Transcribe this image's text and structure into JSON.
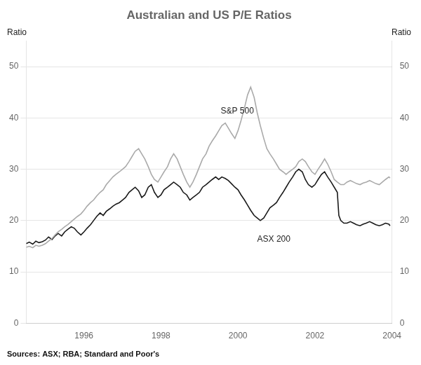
{
  "chart_data": {
    "type": "line",
    "title": "Australian and US P/E Ratios",
    "ylabel": "Ratio",
    "y2label": "Ratio",
    "source": "Sources: ASX; RBA; Standard and Poor's",
    "xlim": [
      1994.5,
      2004.0
    ],
    "xticks": [
      1996,
      1998,
      2000,
      2002,
      2004
    ],
    "ylim": [
      0,
      55
    ],
    "yticks": [
      0,
      10,
      20,
      30,
      40,
      50
    ],
    "y2lim": [
      0,
      55
    ],
    "y2ticks": [
      0,
      10,
      20,
      30,
      40,
      50
    ],
    "grid": true,
    "series": [
      {
        "name": "S&P 500",
        "color": "#aaaaaa",
        "x": [
          1994.5,
          1994.58,
          1994.67,
          1994.75,
          1994.83,
          1994.92,
          1995.0,
          1995.08,
          1995.17,
          1995.25,
          1995.33,
          1995.42,
          1995.5,
          1995.58,
          1995.67,
          1995.75,
          1995.83,
          1995.92,
          1996.0,
          1996.08,
          1996.17,
          1996.25,
          1996.33,
          1996.42,
          1996.5,
          1996.58,
          1996.67,
          1996.75,
          1996.83,
          1996.92,
          1997.0,
          1997.08,
          1997.17,
          1997.25,
          1997.33,
          1997.42,
          1997.5,
          1997.58,
          1997.67,
          1997.75,
          1997.83,
          1997.92,
          1998.0,
          1998.08,
          1998.17,
          1998.25,
          1998.33,
          1998.42,
          1998.5,
          1998.58,
          1998.67,
          1998.75,
          1998.83,
          1998.92,
          1999.0,
          1999.08,
          1999.17,
          1999.25,
          1999.33,
          1999.42,
          1999.5,
          1999.58,
          1999.67,
          1999.75,
          1999.83,
          1999.92,
          2000.0,
          2000.08,
          2000.17,
          2000.25,
          2000.33,
          2000.42,
          2000.5,
          2000.58,
          2000.67,
          2000.75,
          2000.83,
          2000.92,
          2001.0,
          2001.08,
          2001.17,
          2001.25,
          2001.33,
          2001.42,
          2001.5,
          2001.58,
          2001.67,
          2001.75,
          2001.83,
          2001.92,
          2002.0,
          2002.08,
          2002.17,
          2002.25,
          2002.33,
          2002.42,
          2002.5,
          2002.58,
          2002.67,
          2002.75,
          2002.83,
          2002.92,
          2003.0,
          2003.08,
          2003.17,
          2003.25,
          2003.33,
          2003.42,
          2003.5,
          2003.58,
          2003.67,
          2003.75,
          2003.83,
          2003.92,
          2003.95
        ],
        "values": [
          14.8,
          15.0,
          14.7,
          15.2,
          15.0,
          15.2,
          15.5,
          16.0,
          16.5,
          17.2,
          17.8,
          18.3,
          18.8,
          19.2,
          19.8,
          20.3,
          20.8,
          21.3,
          22.0,
          22.8,
          23.5,
          24.0,
          24.8,
          25.5,
          26.0,
          27.0,
          27.8,
          28.5,
          29.0,
          29.5,
          30.0,
          30.5,
          31.5,
          32.5,
          33.5,
          34.0,
          33.0,
          32.0,
          30.5,
          29.0,
          28.0,
          27.5,
          28.5,
          29.5,
          30.5,
          32.0,
          33.0,
          32.0,
          30.5,
          29.0,
          27.5,
          26.5,
          27.5,
          29.0,
          30.5,
          32.0,
          33.0,
          34.5,
          35.5,
          36.5,
          37.5,
          38.5,
          39.0,
          38.0,
          37.0,
          36.0,
          37.5,
          39.5,
          42.0,
          44.5,
          46.0,
          44.0,
          41.0,
          38.5,
          36.0,
          34.0,
          33.0,
          32.0,
          31.0,
          30.0,
          29.5,
          29.0,
          29.5,
          30.0,
          30.5,
          31.5,
          32.0,
          31.5,
          30.5,
          29.5,
          29.0,
          30.0,
          31.0,
          32.0,
          31.0,
          29.5,
          28.0,
          27.5,
          27.0,
          27.0,
          27.5,
          27.8,
          27.5,
          27.2,
          27.0,
          27.3,
          27.5,
          27.8,
          27.5,
          27.2,
          27.0,
          27.5,
          28.0,
          28.5,
          28.3
        ]
      },
      {
        "name": "ASX 200",
        "color": "#1a1a1a",
        "x": [
          1994.5,
          1994.58,
          1994.67,
          1994.75,
          1994.83,
          1994.92,
          1995.0,
          1995.08,
          1995.17,
          1995.25,
          1995.33,
          1995.42,
          1995.5,
          1995.58,
          1995.67,
          1995.75,
          1995.83,
          1995.92,
          1996.0,
          1996.08,
          1996.17,
          1996.25,
          1996.33,
          1996.42,
          1996.5,
          1996.58,
          1996.67,
          1996.75,
          1996.83,
          1996.92,
          1997.0,
          1997.08,
          1997.17,
          1997.25,
          1997.33,
          1997.42,
          1997.5,
          1997.58,
          1997.67,
          1997.75,
          1997.83,
          1997.92,
          1998.0,
          1998.08,
          1998.17,
          1998.25,
          1998.33,
          1998.42,
          1998.5,
          1998.58,
          1998.67,
          1998.75,
          1998.83,
          1998.92,
          1999.0,
          1999.08,
          1999.17,
          1999.25,
          1999.33,
          1999.42,
          1999.5,
          1999.58,
          1999.67,
          1999.75,
          1999.83,
          1999.92,
          2000.0,
          2000.08,
          2000.17,
          2000.25,
          2000.33,
          2000.42,
          2000.5,
          2000.58,
          2000.67,
          2000.75,
          2000.83,
          2000.92,
          2001.0,
          2001.08,
          2001.17,
          2001.25,
          2001.33,
          2001.42,
          2001.5,
          2001.58,
          2001.67,
          2001.75,
          2001.83,
          2001.92,
          2002.0,
          2002.08,
          2002.17,
          2002.25,
          2002.33,
          2002.42,
          2002.5,
          2002.58,
          2002.62,
          2002.67,
          2002.75,
          2002.83,
          2002.92,
          2003.0,
          2003.08,
          2003.17,
          2003.25,
          2003.33,
          2003.42,
          2003.5,
          2003.58,
          2003.67,
          2003.75,
          2003.83,
          2003.92,
          2003.95
        ],
        "values": [
          15.5,
          15.8,
          15.4,
          16.0,
          15.7,
          15.9,
          16.2,
          16.8,
          16.3,
          17.0,
          17.5,
          17.0,
          17.8,
          18.3,
          18.8,
          18.5,
          17.8,
          17.2,
          17.8,
          18.5,
          19.2,
          20.0,
          20.8,
          21.5,
          21.0,
          21.8,
          22.3,
          22.8,
          23.2,
          23.5,
          24.0,
          24.5,
          25.5,
          26.0,
          26.5,
          25.8,
          24.5,
          25.0,
          26.5,
          27.0,
          25.5,
          24.5,
          25.0,
          26.0,
          26.5,
          27.0,
          27.5,
          27.0,
          26.5,
          25.5,
          25.0,
          24.0,
          24.5,
          25.0,
          25.5,
          26.5,
          27.0,
          27.5,
          28.0,
          28.5,
          28.0,
          28.5,
          28.2,
          27.8,
          27.2,
          26.5,
          26.0,
          25.0,
          24.0,
          23.0,
          22.0,
          21.0,
          20.5,
          20.0,
          20.5,
          21.5,
          22.5,
          23.0,
          23.5,
          24.5,
          25.5,
          26.5,
          27.5,
          28.5,
          29.5,
          30.0,
          29.5,
          28.0,
          27.0,
          26.5,
          27.0,
          28.0,
          29.0,
          29.5,
          28.5,
          27.5,
          26.5,
          25.5,
          21.0,
          20.0,
          19.5,
          19.5,
          19.8,
          19.5,
          19.2,
          19.0,
          19.3,
          19.5,
          19.8,
          19.5,
          19.2,
          19.0,
          19.2,
          19.5,
          19.3,
          19.0
        ]
      }
    ],
    "annotations": [
      {
        "text": "S&P 500",
        "x": 1999.55,
        "y": 40.5
      },
      {
        "text": "ASX 200",
        "x": 2000.5,
        "y": 15.5
      }
    ]
  }
}
